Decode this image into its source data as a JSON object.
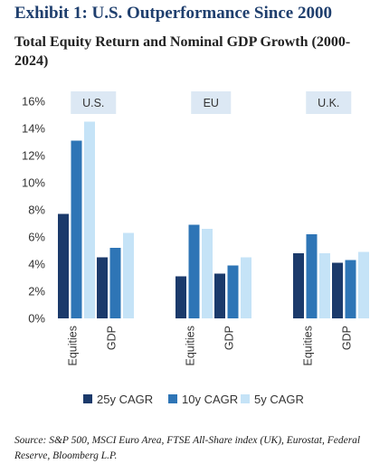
{
  "header": {
    "exhibit_title": "Exhibit 1:  U.S. Outperformance Since 2000",
    "subtitle": "Total Equity Return and Nominal GDP Growth (2000-2024)"
  },
  "source": "Source: S&P 500, MSCI Euro Area, FTSE All-Share index (UK), Eurostat, Federal Reserve, Bloomberg L.P.",
  "chart_data": {
    "type": "bar",
    "title": "Total Equity Return and Nominal GDP Growth (2000-2024)",
    "ylim": [
      0,
      16
    ],
    "yticks": [
      "0%",
      "2%",
      "4%",
      "6%",
      "8%",
      "10%",
      "12%",
      "14%",
      "16%"
    ],
    "grid": false,
    "legend_position": "bottom",
    "groups": [
      "U.S.",
      "EU",
      "U.K."
    ],
    "categories": [
      "Equities",
      "GDP"
    ],
    "series": [
      {
        "name": "25y CAGR",
        "color": "#1b3a6b",
        "values": [
          [
            7.7,
            4.5
          ],
          [
            3.1,
            3.3
          ],
          [
            4.8,
            4.1
          ]
        ]
      },
      {
        "name": "10y CAGR",
        "color": "#2e75b6",
        "values": [
          [
            13.1,
            5.2
          ],
          [
            6.9,
            3.9
          ],
          [
            6.2,
            4.3
          ]
        ]
      },
      {
        "name": "5y CAGR",
        "color": "#c5e3f7",
        "values": [
          [
            14.5,
            6.3
          ],
          [
            6.6,
            4.5
          ],
          [
            4.8,
            4.9
          ]
        ]
      }
    ],
    "region_label_bg": "#dce8f4"
  }
}
